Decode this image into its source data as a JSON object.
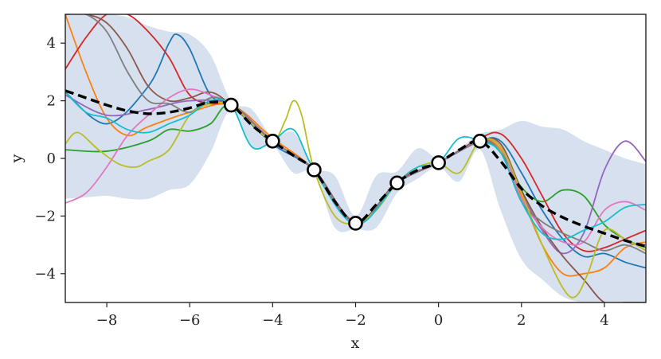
{
  "chart_data": {
    "type": "line",
    "xlabel": "x",
    "ylabel": "y",
    "xlim": [
      -9,
      5
    ],
    "ylim": [
      -5,
      5
    ],
    "xticks": [
      -8,
      -6,
      -4,
      -2,
      0,
      2,
      4
    ],
    "yticks": [
      -4,
      -2,
      0,
      2,
      4
    ],
    "xtick_labels": [
      "−8",
      "−6",
      "−4",
      "−2",
      "0",
      "2",
      "4"
    ],
    "ytick_labels": [
      "−4",
      "−2",
      "0",
      "2",
      "4"
    ],
    "grid": false,
    "legend": "none",
    "observations": {
      "x": [
        -5,
        -4,
        -3,
        -2,
        -1,
        0,
        1
      ],
      "y": [
        1.85,
        0.6,
        -0.4,
        -2.25,
        -0.85,
        -0.15,
        0.6
      ]
    },
    "mean": {
      "x": [
        -9,
        -8.5,
        -8,
        -7.5,
        -7,
        -6.5,
        -6,
        -5.5,
        -5,
        -4.5,
        -4,
        -3.5,
        -3,
        -2.5,
        -2,
        -1.5,
        -1,
        -0.5,
        0,
        0.5,
        1,
        1.5,
        2,
        2.5,
        3,
        3.5,
        4,
        4.5,
        5
      ],
      "y": [
        2.35,
        2.1,
        1.85,
        1.65,
        1.55,
        1.6,
        1.75,
        1.95,
        1.85,
        1.15,
        0.6,
        0.1,
        -0.4,
        -1.5,
        -2.25,
        -1.6,
        -0.85,
        -0.4,
        -0.15,
        0.3,
        0.6,
        -0.1,
        -1.05,
        -1.65,
        -2.05,
        -2.35,
        -2.6,
        -2.85,
        -3.05
      ]
    },
    "band": {
      "x": [
        -9,
        -8.5,
        -8,
        -7.5,
        -7,
        -6.5,
        -6,
        -5.5,
        -5,
        -4.5,
        -4,
        -3.5,
        -3,
        -2.5,
        -2,
        -1.5,
        -1,
        -0.5,
        0,
        0.5,
        1,
        1.5,
        2,
        2.5,
        3,
        3.5,
        4,
        4.5,
        5
      ],
      "upper": [
        5.0,
        5.0,
        5.0,
        4.9,
        4.6,
        4.4,
        4.3,
        3.6,
        2.0,
        1.7,
        0.75,
        0.9,
        -0.3,
        -0.6,
        -2.0,
        -0.6,
        -0.45,
        0.35,
        0.0,
        0.35,
        0.85,
        1.0,
        1.3,
        1.1,
        1.0,
        0.6,
        0.3,
        0.0,
        -0.2
      ],
      "lower": [
        -1.4,
        -1.35,
        -1.3,
        -1.4,
        -1.4,
        -1.1,
        -0.9,
        0.2,
        1.7,
        0.4,
        0.45,
        -0.5,
        -0.5,
        -2.4,
        -2.45,
        -2.4,
        -1.2,
        -0.7,
        -0.3,
        -0.8,
        0.3,
        -1.8,
        -3.5,
        -4.2,
        -4.8,
        -5.0,
        -5.0,
        -5.0,
        -5.0
      ]
    },
    "samples": [
      {
        "color": "#1f77b4",
        "x": [
          -9,
          -8,
          -7,
          -6.5,
          -6.3,
          -6,
          -5.5,
          -5,
          -4,
          -3,
          -2,
          -1,
          0,
          1,
          1.5,
          2,
          2.5,
          3,
          3.5,
          4,
          4.5,
          5
        ],
        "y": [
          2.3,
          1.2,
          2.5,
          4.0,
          4.3,
          3.8,
          2.2,
          1.85,
          0.5,
          -0.4,
          -2.2,
          -0.85,
          -0.15,
          0.6,
          0.6,
          -0.5,
          -1.8,
          -2.8,
          -3.4,
          -3.3,
          -3.6,
          -3.8
        ]
      },
      {
        "color": "#ff7f0e",
        "x": [
          -9,
          -8.5,
          -8,
          -7.5,
          -7,
          -6,
          -5,
          -4,
          -3,
          -2,
          -1,
          0,
          1,
          1.5,
          2,
          2.5,
          3,
          3.5,
          4,
          4.5,
          5
        ],
        "y": [
          5.0,
          3.0,
          1.4,
          0.8,
          1.1,
          1.6,
          1.85,
          0.7,
          -0.4,
          -2.3,
          -0.85,
          -0.15,
          0.6,
          0.3,
          -1.3,
          -3.0,
          -4.0,
          -4.0,
          -3.8,
          -3.1,
          -2.9
        ]
      },
      {
        "color": "#2ca02c",
        "x": [
          -9,
          -8,
          -7,
          -6.5,
          -6,
          -5.5,
          -5,
          -4,
          -3,
          -2,
          -1,
          0,
          1,
          1.5,
          2,
          2.5,
          3,
          3.5,
          4,
          4.5,
          5
        ],
        "y": [
          0.3,
          0.25,
          0.6,
          1.0,
          0.95,
          1.2,
          1.85,
          0.6,
          -0.4,
          -2.25,
          -0.85,
          -0.15,
          0.6,
          0.2,
          -1.0,
          -1.5,
          -1.1,
          -1.3,
          -2.3,
          -2.8,
          -3.1
        ]
      },
      {
        "color": "#d62728",
        "x": [
          -9,
          -8.5,
          -8,
          -7.5,
          -7,
          -6.5,
          -6,
          -5.5,
          -5,
          -4,
          -3,
          -2,
          -1,
          0,
          1,
          1.5,
          2,
          2.5,
          3,
          3.5,
          4,
          4.5,
          5
        ],
        "y": [
          3.1,
          4.2,
          5.0,
          5.0,
          4.4,
          3.5,
          2.2,
          1.9,
          1.85,
          0.6,
          -0.4,
          -2.3,
          -0.8,
          -0.15,
          0.7,
          0.85,
          0.0,
          -1.3,
          -2.6,
          -3.2,
          -3.1,
          -2.8,
          -2.5
        ]
      },
      {
        "color": "#9467bd",
        "x": [
          -9,
          -8,
          -7,
          -6,
          -5,
          -4,
          -3,
          -2,
          -1,
          0,
          1,
          1.5,
          2,
          2.5,
          3,
          3.5,
          4,
          4.5,
          5
        ],
        "y": [
          2.2,
          1.5,
          1.7,
          2.0,
          1.85,
          0.6,
          -0.4,
          -2.2,
          -0.85,
          -0.15,
          0.6,
          0.4,
          -1.2,
          -2.5,
          -3.3,
          -2.6,
          -0.4,
          0.6,
          -0.1
        ]
      },
      {
        "color": "#8c564b",
        "x": [
          -9,
          -8.5,
          -8,
          -7.5,
          -7,
          -6.5,
          -6,
          -5.5,
          -5,
          -4,
          -3,
          -2,
          -1,
          0,
          1,
          1.5,
          2,
          2.5,
          3,
          3.5,
          4,
          4.5,
          5
        ],
        "y": [
          5.0,
          5.0,
          4.7,
          3.8,
          2.5,
          2.0,
          2.1,
          2.3,
          1.85,
          0.6,
          -0.4,
          -2.2,
          -0.85,
          -0.15,
          0.6,
          0.5,
          -1.1,
          -2.4,
          -3.4,
          -4.2,
          -5.0,
          -5.0,
          -5.0
        ]
      },
      {
        "color": "#e377c2",
        "x": [
          -9,
          -8.5,
          -8,
          -7.5,
          -7,
          -6.5,
          -6,
          -5.5,
          -5,
          -4,
          -3,
          -2,
          -1,
          0,
          1,
          1.5,
          2,
          2.5,
          3,
          3.5,
          4,
          4.5,
          5
        ],
        "y": [
          -1.55,
          -1.2,
          -0.3,
          0.8,
          1.5,
          2.1,
          2.4,
          2.2,
          1.85,
          0.6,
          -0.4,
          -2.25,
          -0.85,
          -0.15,
          0.6,
          0.4,
          -1.4,
          -2.4,
          -2.9,
          -2.9,
          -1.8,
          -1.5,
          -1.8
        ]
      },
      {
        "color": "#7f7f7f",
        "x": [
          -9,
          -8.5,
          -8,
          -7.5,
          -7,
          -6.5,
          -6,
          -5.5,
          -5,
          -4,
          -3,
          -2,
          -1,
          0,
          1,
          1.5,
          2,
          2.5,
          3,
          3.5,
          4,
          4.5,
          5
        ],
        "y": [
          5.0,
          5.0,
          4.4,
          3.0,
          2.0,
          1.9,
          1.6,
          2.1,
          1.85,
          0.6,
          -0.4,
          -2.25,
          -0.85,
          -0.15,
          0.6,
          0.2,
          -1.5,
          -2.2,
          -2.6,
          -2.9,
          -3.2,
          -3.0,
          -3.3
        ]
      },
      {
        "color": "#bcbd22",
        "x": [
          -9,
          -8.7,
          -8.2,
          -7.7,
          -7.3,
          -7,
          -6.5,
          -6,
          -5.5,
          -5,
          -4.5,
          -4,
          -3.7,
          -3.5,
          -3.3,
          -3,
          -2.5,
          -2,
          -1.5,
          -1,
          -0.5,
          0,
          0.5,
          1,
          1.5,
          2,
          2.5,
          3,
          3.3,
          3.6,
          4,
          4.5,
          5
        ],
        "y": [
          0.5,
          0.9,
          0.3,
          -0.2,
          -0.3,
          -0.1,
          0.3,
          1.5,
          1.9,
          1.85,
          1.2,
          0.6,
          1.3,
          2.0,
          1.5,
          -0.4,
          -2.0,
          -2.25,
          -1.8,
          -0.85,
          -0.3,
          -0.15,
          -0.5,
          0.6,
          0.4,
          -1.2,
          -3.0,
          -4.5,
          -4.8,
          -4.0,
          -2.5,
          -2.8,
          -3.2
        ]
      },
      {
        "color": "#17becf",
        "x": [
          -9,
          -8.5,
          -8,
          -7.5,
          -7,
          -6.5,
          -6,
          -5.5,
          -5,
          -4.5,
          -4,
          -3.5,
          -3,
          -2,
          -1,
          -0.5,
          0,
          0.5,
          1,
          1.5,
          2,
          2.5,
          3,
          3.5,
          4,
          4.5,
          5
        ],
        "y": [
          2.3,
          1.6,
          1.4,
          1.0,
          0.9,
          1.2,
          1.5,
          2.0,
          1.85,
          0.4,
          0.6,
          1.0,
          -0.4,
          -2.3,
          -0.85,
          -0.3,
          -0.15,
          0.7,
          0.6,
          0.2,
          -1.5,
          -2.6,
          -2.8,
          -2.5,
          -2.2,
          -1.7,
          -1.6
        ]
      }
    ]
  }
}
